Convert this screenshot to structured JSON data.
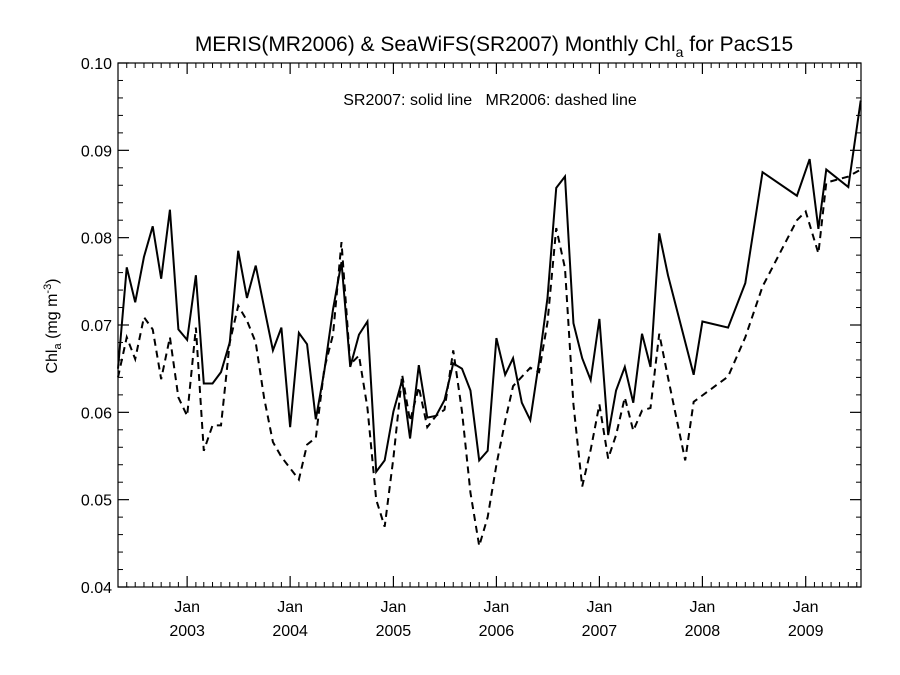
{
  "chart_data": {
    "type": "line",
    "title": {
      "main": "MERIS(MR2006) & SeaWiFS(SR2007) Monthly Chl",
      "sub": "a",
      "tail": " for PacS15"
    },
    "ylabel": {
      "main": "Chl",
      "sub": "a",
      "unit_open": " (mg m",
      "unit_sup": "-3",
      "unit_close": ")"
    },
    "annotation": "SR2007: solid line   MR2006: dashed line",
    "xlim": [
      "2002-05-01",
      "2009-07-16"
    ],
    "ylim": [
      0.04,
      0.1
    ],
    "y_ticks": [
      {
        "value": 0.04,
        "label": "0.04"
      },
      {
        "value": 0.05,
        "label": "0.05"
      },
      {
        "value": 0.06,
        "label": "0.06"
      },
      {
        "value": 0.07,
        "label": "0.07"
      },
      {
        "value": 0.08,
        "label": "0.08"
      },
      {
        "value": 0.09,
        "label": "0.09"
      },
      {
        "value": 0.1,
        "label": "0.10"
      }
    ],
    "x_ticks": [
      {
        "date": "2003-01-01",
        "month": "Jan",
        "year": "2003"
      },
      {
        "date": "2004-01-01",
        "month": "Jan",
        "year": "2004"
      },
      {
        "date": "2005-01-01",
        "month": "Jan",
        "year": "2005"
      },
      {
        "date": "2006-01-01",
        "month": "Jan",
        "year": "2006"
      },
      {
        "date": "2007-01-01",
        "month": "Jan",
        "year": "2007"
      },
      {
        "date": "2008-01-01",
        "month": "Jan",
        "year": "2008"
      },
      {
        "date": "2009-01-01",
        "month": "Jan",
        "year": "2009"
      }
    ],
    "series": [
      {
        "style": "solid",
        "points": [
          [
            "2002-05-01",
            0.065
          ],
          [
            "2002-06-01",
            0.0766
          ],
          [
            "2002-07-01",
            0.0726
          ],
          [
            "2002-08-01",
            0.0778
          ],
          [
            "2002-09-01",
            0.0813
          ],
          [
            "2002-10-01",
            0.0753
          ],
          [
            "2002-11-01",
            0.0832
          ],
          [
            "2002-12-01",
            0.0695
          ],
          [
            "2003-01-01",
            0.0683
          ],
          [
            "2003-02-01",
            0.0757
          ],
          [
            "2003-03-01",
            0.0633
          ],
          [
            "2003-04-01",
            0.0633
          ],
          [
            "2003-05-01",
            0.0646
          ],
          [
            "2003-06-01",
            0.068
          ],
          [
            "2003-07-01",
            0.0785
          ],
          [
            "2003-08-01",
            0.0731
          ],
          [
            "2003-09-01",
            0.0768
          ],
          [
            "2003-10-01",
            0.072
          ],
          [
            "2003-11-01",
            0.0671
          ],
          [
            "2003-12-01",
            0.0697
          ],
          [
            "2004-01-01",
            0.0583
          ],
          [
            "2004-02-01",
            0.0691
          ],
          [
            "2004-03-01",
            0.0678
          ],
          [
            "2004-04-01",
            0.0592
          ],
          [
            "2004-05-01",
            0.0647
          ],
          [
            "2004-06-01",
            0.0718
          ],
          [
            "2004-07-01",
            0.0772
          ],
          [
            "2004-08-01",
            0.0652
          ],
          [
            "2004-09-01",
            0.0689
          ],
          [
            "2004-10-01",
            0.0704
          ],
          [
            "2004-11-01",
            0.0532
          ],
          [
            "2004-12-01",
            0.0545
          ],
          [
            "2005-01-01",
            0.0601
          ],
          [
            "2005-02-01",
            0.0637
          ],
          [
            "2005-03-01",
            0.057
          ],
          [
            "2005-04-01",
            0.0654
          ],
          [
            "2005-05-01",
            0.0594
          ],
          [
            "2005-06-01",
            0.0596
          ],
          [
            "2005-07-01",
            0.0614
          ],
          [
            "2005-08-01",
            0.0656
          ],
          [
            "2005-09-01",
            0.065
          ],
          [
            "2005-10-01",
            0.0625
          ],
          [
            "2005-11-01",
            0.0545
          ],
          [
            "2005-12-01",
            0.0556
          ],
          [
            "2006-01-01",
            0.0685
          ],
          [
            "2006-02-01",
            0.0643
          ],
          [
            "2006-03-01",
            0.0662
          ],
          [
            "2006-04-01",
            0.0611
          ],
          [
            "2006-05-01",
            0.0591
          ],
          [
            "2006-06-01",
            0.0658
          ],
          [
            "2006-07-01",
            0.0731
          ],
          [
            "2006-08-01",
            0.0857
          ],
          [
            "2006-09-01",
            0.087
          ],
          [
            "2006-10-01",
            0.0702
          ],
          [
            "2006-11-01",
            0.0662
          ],
          [
            "2006-12-01",
            0.0637
          ],
          [
            "2007-01-01",
            0.0707
          ],
          [
            "2007-02-01",
            0.0574
          ],
          [
            "2007-03-01",
            0.0625
          ],
          [
            "2007-04-01",
            0.0652
          ],
          [
            "2007-05-01",
            0.0611
          ],
          [
            "2007-06-01",
            0.069
          ],
          [
            "2007-07-01",
            0.0652
          ],
          [
            "2007-08-01",
            0.0805
          ],
          [
            "2007-09-01",
            0.0757
          ],
          [
            "2007-12-01",
            0.0643
          ],
          [
            "2008-01-01",
            0.0704
          ],
          [
            "2008-04-01",
            0.0697
          ],
          [
            "2008-06-01",
            0.0748
          ],
          [
            "2008-08-01",
            0.0875
          ],
          [
            "2008-12-01",
            0.0848
          ],
          [
            "2009-01-15",
            0.089
          ],
          [
            "2009-02-15",
            0.081
          ],
          [
            "2009-03-15",
            0.0878
          ],
          [
            "2009-06-01",
            0.0858
          ],
          [
            "2009-07-15",
            0.0957
          ]
        ]
      },
      {
        "style": "dashed",
        "points": [
          [
            "2002-05-01",
            0.064
          ],
          [
            "2002-06-01",
            0.0686
          ],
          [
            "2002-07-01",
            0.0661
          ],
          [
            "2002-08-01",
            0.0709
          ],
          [
            "2002-09-01",
            0.0695
          ],
          [
            "2002-10-01",
            0.0638
          ],
          [
            "2002-11-01",
            0.0686
          ],
          [
            "2002-12-01",
            0.0617
          ],
          [
            "2003-01-01",
            0.0596
          ],
          [
            "2003-02-01",
            0.0697
          ],
          [
            "2003-03-01",
            0.0556
          ],
          [
            "2003-04-01",
            0.0585
          ],
          [
            "2003-05-01",
            0.0585
          ],
          [
            "2003-06-01",
            0.068
          ],
          [
            "2003-07-01",
            0.0722
          ],
          [
            "2003-08-01",
            0.0705
          ],
          [
            "2003-09-01",
            0.068
          ],
          [
            "2003-10-01",
            0.0616
          ],
          [
            "2003-11-01",
            0.0566
          ],
          [
            "2003-12-01",
            0.0549
          ],
          [
            "2004-02-01",
            0.0523
          ],
          [
            "2004-03-01",
            0.0563
          ],
          [
            "2004-04-01",
            0.0571
          ],
          [
            "2004-05-01",
            0.065
          ],
          [
            "2004-06-01",
            0.0689
          ],
          [
            "2004-07-01",
            0.0795
          ],
          [
            "2004-08-01",
            0.0655
          ],
          [
            "2004-09-01",
            0.0665
          ],
          [
            "2004-10-01",
            0.0605
          ],
          [
            "2004-11-01",
            0.05
          ],
          [
            "2004-12-01",
            0.0469
          ],
          [
            "2005-01-01",
            0.0548
          ],
          [
            "2005-02-01",
            0.0643
          ],
          [
            "2005-03-01",
            0.059
          ],
          [
            "2005-04-01",
            0.0629
          ],
          [
            "2005-05-01",
            0.0583
          ],
          [
            "2005-06-01",
            0.0596
          ],
          [
            "2005-07-01",
            0.0603
          ],
          [
            "2005-08-01",
            0.0671
          ],
          [
            "2005-09-01",
            0.0601
          ],
          [
            "2005-10-01",
            0.0508
          ],
          [
            "2005-11-01",
            0.0447
          ],
          [
            "2005-12-01",
            0.048
          ],
          [
            "2006-01-01",
            0.054
          ],
          [
            "2006-02-01",
            0.059
          ],
          [
            "2006-03-01",
            0.063
          ],
          [
            "2006-05-01",
            0.0651
          ],
          [
            "2006-06-01",
            0.0646
          ],
          [
            "2006-07-01",
            0.0703
          ],
          [
            "2006-08-01",
            0.0811
          ],
          [
            "2006-09-01",
            0.0765
          ],
          [
            "2006-10-01",
            0.0609
          ],
          [
            "2006-11-01",
            0.0515
          ],
          [
            "2006-12-01",
            0.0557
          ],
          [
            "2007-01-01",
            0.0609
          ],
          [
            "2007-02-01",
            0.0547
          ],
          [
            "2007-03-01",
            0.0574
          ],
          [
            "2007-04-01",
            0.0617
          ],
          [
            "2007-05-01",
            0.0579
          ],
          [
            "2007-06-01",
            0.0602
          ],
          [
            "2007-07-01",
            0.0605
          ],
          [
            "2007-08-01",
            0.069
          ],
          [
            "2007-09-01",
            0.064
          ],
          [
            "2007-11-01",
            0.0545
          ],
          [
            "2007-12-01",
            0.0612
          ],
          [
            "2008-04-01",
            0.0641
          ],
          [
            "2008-06-01",
            0.0686
          ],
          [
            "2008-08-01",
            0.0744
          ],
          [
            "2008-12-01",
            0.082
          ],
          [
            "2009-01-01",
            0.083
          ],
          [
            "2009-02-15",
            0.0782
          ],
          [
            "2009-03-15",
            0.0863
          ],
          [
            "2009-06-01",
            0.087
          ],
          [
            "2009-07-15",
            0.0878
          ]
        ]
      }
    ]
  }
}
